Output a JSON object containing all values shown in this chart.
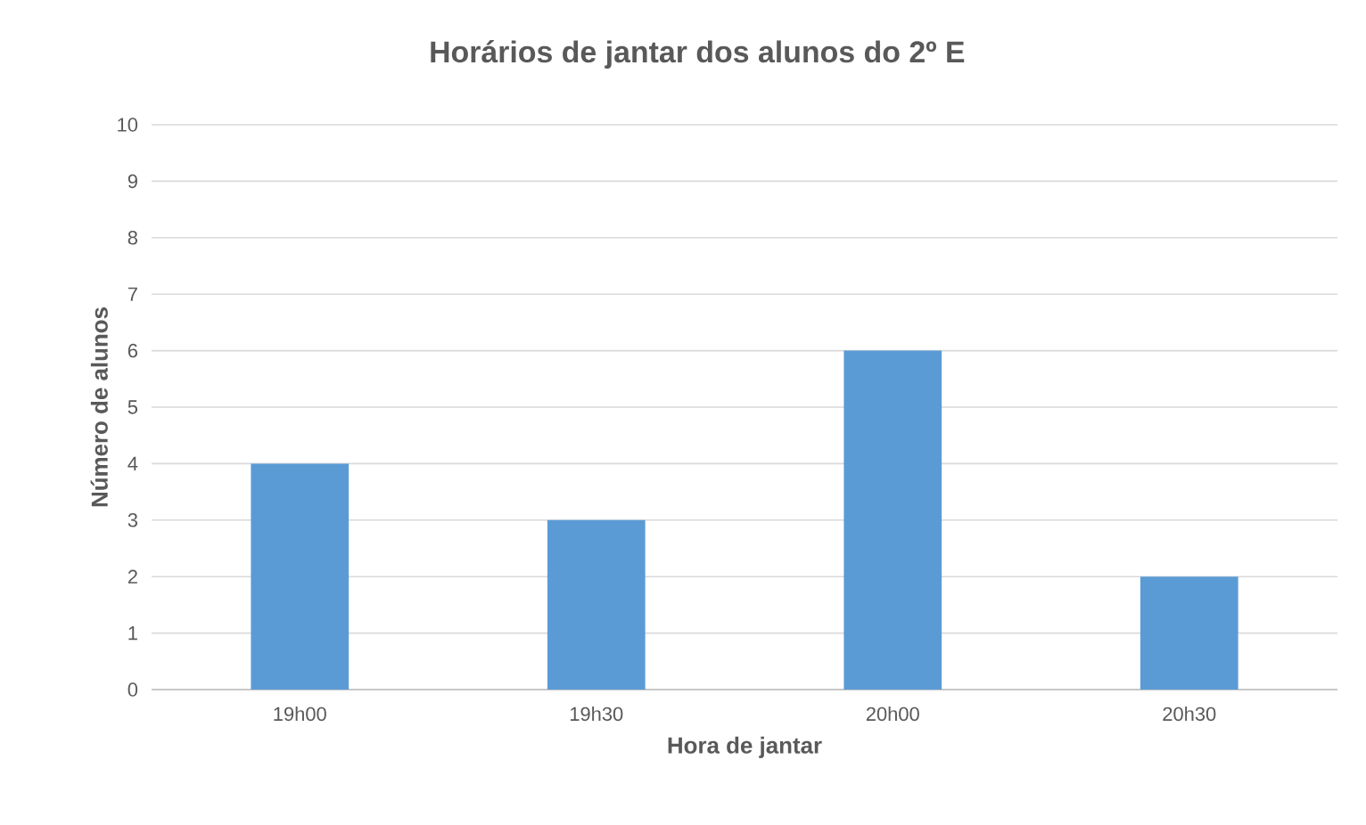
{
  "chart_data": {
    "type": "bar",
    "title": "Horários de jantar dos alunos do 2º E",
    "xlabel": "Hora de jantar",
    "ylabel": "Número de alunos",
    "categories": [
      "19h00",
      "19h30",
      "20h00",
      "20h30"
    ],
    "values": [
      4,
      3,
      6,
      2
    ],
    "color": "#5b9bd5",
    "ylim": [
      0,
      10
    ],
    "yticks": [
      0,
      1,
      2,
      3,
      4,
      5,
      6,
      7,
      8,
      9,
      10
    ],
    "grid": "y"
  }
}
